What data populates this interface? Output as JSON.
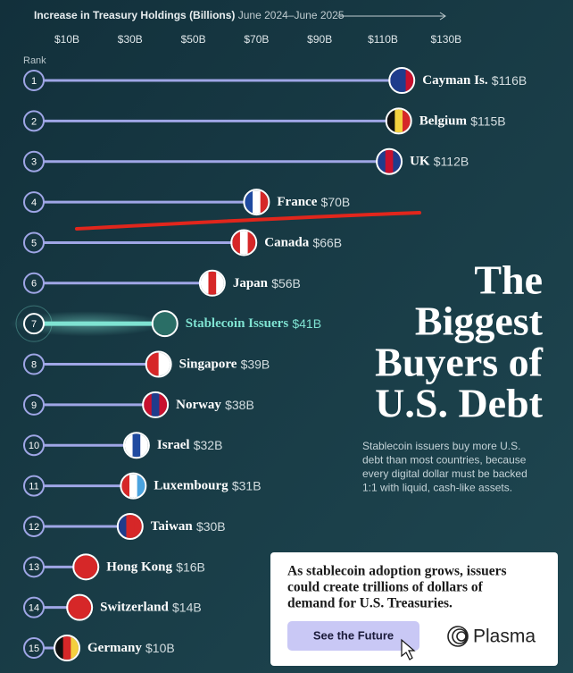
{
  "chart_data": {
    "type": "lollipop",
    "axis_title": "Increase in Treasury Holdings (Billions)",
    "axis_period": "June 2024–June 2025",
    "rank_label": "Rank",
    "xlim": [
      0,
      140
    ],
    "xticks": [
      {
        "value": 10,
        "label": "$10B"
      },
      {
        "value": 30,
        "label": "$30B"
      },
      {
        "value": 50,
        "label": "$50B"
      },
      {
        "value": 70,
        "label": "$70B"
      },
      {
        "value": 90,
        "label": "$90B"
      },
      {
        "value": 110,
        "label": "$110B"
      },
      {
        "value": 130,
        "label": "$130B"
      }
    ],
    "ranks": [
      1,
      2,
      3,
      4,
      5,
      6,
      7,
      8,
      9,
      10,
      11,
      12,
      13,
      14,
      15
    ],
    "categories": [
      "Cayman Is.",
      "Belgium",
      "UK",
      "France",
      "Canada",
      "Japan",
      "Stablecoin Issuers",
      "Singapore",
      "Norway",
      "Israel",
      "Luxembourg",
      "Taiwan",
      "Hong Kong",
      "Switzerland",
      "Germany"
    ],
    "values": [
      116,
      115,
      112,
      70,
      66,
      56,
      41,
      39,
      38,
      32,
      31,
      30,
      16,
      14,
      10
    ],
    "value_labels": [
      "$116B",
      "$115B",
      "$112B",
      "$70B",
      "$66B",
      "$56B",
      "$41B",
      "$39B",
      "$38B",
      "$32B",
      "$31B",
      "$30B",
      "$16B",
      "$14B",
      "$10B"
    ],
    "line_color": "#9fa6e6",
    "highlight": 6,
    "highlight_color": "#7fe3d2",
    "flags": [
      [
        "#1f3c8c",
        "#1f3c8c",
        "#c8102e"
      ],
      [
        "#111111",
        "#f4d03f",
        "#d62728"
      ],
      [
        "#1f3c8c",
        "#c8102e",
        "#1f3c8c"
      ],
      [
        "#1f4aa0",
        "#ffffff",
        "#d62728"
      ],
      [
        "#d62728",
        "#ffffff",
        "#d62728"
      ],
      [
        "#ffffff",
        "#d62728",
        "#ffffff"
      ],
      [
        "#2a6e66"
      ],
      [
        "#d62728",
        "#ffffff"
      ],
      [
        "#c8102e",
        "#1f3c8c",
        "#c8102e"
      ],
      [
        "#ffffff",
        "#1f4aa0",
        "#ffffff"
      ],
      [
        "#d62728",
        "#ffffff",
        "#4aa3df"
      ],
      [
        "#1f3c8c",
        "#d62728",
        "#d62728"
      ],
      [
        "#d62728"
      ],
      [
        "#d62728"
      ],
      [
        "#111111",
        "#d62728",
        "#f4d03f"
      ]
    ],
    "title_lines": [
      "The",
      "Biggest",
      "Buyers of",
      "U.S. Debt"
    ],
    "subtitle_lines": [
      "Stablecoin issuers buy more U.S.",
      "debt than most countries, because",
      "every digital dollar must be backed",
      "1:1 with liquid, cash-like assets."
    ],
    "callout_lines": [
      "As stablecoin adoption grows, issuers",
      "could create trillions of dollars of",
      "demand for U.S. Treasuries."
    ],
    "button": "See the Future",
    "brand": "Plasma"
  }
}
